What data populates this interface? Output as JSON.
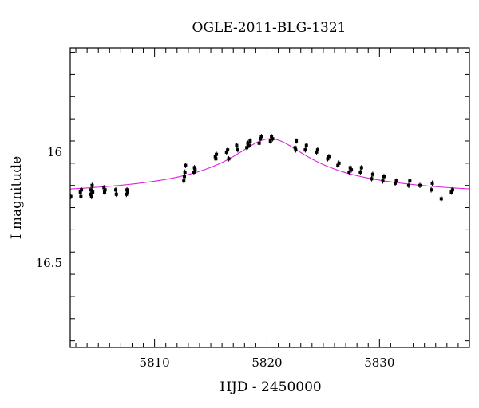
{
  "chart_data": {
    "type": "scatter",
    "title": "OGLE-2011-BLG-1321",
    "xlabel": "HJD - 2450000",
    "ylabel": "I magnitude",
    "xlim": [
      5802.5,
      5838.0
    ],
    "ylim": [
      16.88,
      15.53
    ],
    "y_inverted": true,
    "x_ticks": [
      5810,
      5820,
      5830
    ],
    "y_ticks": [
      16,
      16.5
    ],
    "x_tick_labels": [
      "5810",
      "5820",
      "5830"
    ],
    "y_tick_labels": [
      "16",
      "16.5"
    ],
    "grid": false,
    "colors": {
      "points": "#000000",
      "model": "#e020e0",
      "frame": "#000000"
    },
    "series": [
      {
        "type": "scatter",
        "points": [
          [
            5802.55,
            16.2,
            0.012
          ],
          [
            5803.4,
            16.18,
            0.012
          ],
          [
            5803.45,
            16.2,
            0.012
          ],
          [
            5803.5,
            16.17,
            0.012
          ],
          [
            5804.3,
            16.19,
            0.012
          ],
          [
            5804.35,
            16.17,
            0.012
          ],
          [
            5804.4,
            16.2,
            0.012
          ],
          [
            5804.45,
            16.15,
            0.012
          ],
          [
            5804.5,
            16.18,
            0.012
          ],
          [
            5805.5,
            16.16,
            0.012
          ],
          [
            5805.55,
            16.18,
            0.012
          ],
          [
            5805.6,
            16.17,
            0.012
          ],
          [
            5806.55,
            16.17,
            0.012
          ],
          [
            5806.6,
            16.19,
            0.012
          ],
          [
            5807.5,
            16.19,
            0.012
          ],
          [
            5807.55,
            16.17,
            0.012
          ],
          [
            5807.6,
            16.18,
            0.012
          ],
          [
            5812.6,
            16.13,
            0.012
          ],
          [
            5812.65,
            16.11,
            0.012
          ],
          [
            5812.7,
            16.09,
            0.012
          ],
          [
            5812.75,
            16.06,
            0.012
          ],
          [
            5813.5,
            16.09,
            0.012
          ],
          [
            5813.55,
            16.07,
            0.012
          ],
          [
            5813.6,
            16.08,
            0.012
          ],
          [
            5815.4,
            16.02,
            0.012
          ],
          [
            5815.45,
            16.03,
            0.012
          ],
          [
            5815.5,
            16.01,
            0.012
          ],
          [
            5816.4,
            16.0,
            0.012
          ],
          [
            5816.5,
            15.99,
            0.012
          ],
          [
            5816.6,
            16.03,
            0.012
          ],
          [
            5817.3,
            15.97,
            0.012
          ],
          [
            5817.4,
            15.99,
            0.012
          ],
          [
            5818.2,
            15.98,
            0.012
          ],
          [
            5818.3,
            15.96,
            0.012
          ],
          [
            5818.4,
            15.97,
            0.012
          ],
          [
            5818.5,
            15.95,
            0.012
          ],
          [
            5819.3,
            15.96,
            0.012
          ],
          [
            5819.4,
            15.94,
            0.012
          ],
          [
            5819.5,
            15.93,
            0.012
          ],
          [
            5820.3,
            15.95,
            0.012
          ],
          [
            5820.4,
            15.93,
            0.012
          ],
          [
            5820.5,
            15.94,
            0.012
          ],
          [
            5822.5,
            15.98,
            0.012
          ],
          [
            5822.55,
            15.99,
            0.012
          ],
          [
            5822.6,
            15.95,
            0.012
          ],
          [
            5823.4,
            15.99,
            0.012
          ],
          [
            5823.5,
            15.97,
            0.012
          ],
          [
            5824.4,
            16.0,
            0.012
          ],
          [
            5824.5,
            15.99,
            0.012
          ],
          [
            5825.4,
            16.03,
            0.012
          ],
          [
            5825.5,
            16.02,
            0.012
          ],
          [
            5826.3,
            16.06,
            0.012
          ],
          [
            5826.4,
            16.05,
            0.012
          ],
          [
            5827.3,
            16.09,
            0.012
          ],
          [
            5827.4,
            16.07,
            0.012
          ],
          [
            5827.5,
            16.08,
            0.012
          ],
          [
            5828.3,
            16.09,
            0.012
          ],
          [
            5828.4,
            16.07,
            0.012
          ],
          [
            5829.3,
            16.12,
            0.012
          ],
          [
            5829.4,
            16.1,
            0.012
          ],
          [
            5830.3,
            16.13,
            0.012
          ],
          [
            5830.4,
            16.11,
            0.012
          ],
          [
            5831.4,
            16.14,
            0.012
          ],
          [
            5831.5,
            16.13,
            0.012
          ],
          [
            5832.6,
            16.15,
            0.012
          ],
          [
            5832.7,
            16.13,
            0.012
          ],
          [
            5833.6,
            16.15,
            0.012
          ],
          [
            5834.6,
            16.17,
            0.012
          ],
          [
            5834.7,
            16.14,
            0.012
          ],
          [
            5835.5,
            16.21,
            0.012
          ],
          [
            5836.4,
            16.18,
            0.012
          ],
          [
            5836.5,
            16.17,
            0.012
          ]
        ]
      },
      {
        "type": "line",
        "model": {
          "baseline": 16.22,
          "peak_mag": 15.94,
          "t0": 5820.3,
          "tE": 5.6
        }
      }
    ]
  }
}
